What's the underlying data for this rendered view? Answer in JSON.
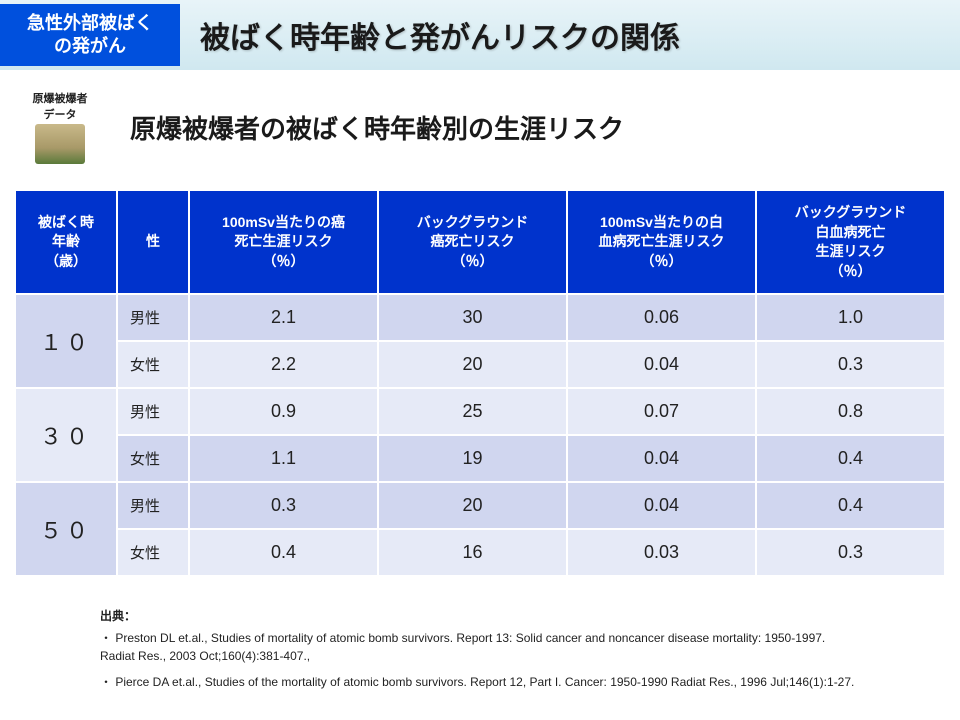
{
  "header": {
    "category_line1": "急性外部被ばく",
    "category_line2": "の発がん",
    "title": "被ばく時年齢と発がんリスクの関係"
  },
  "sub": {
    "source_label": "原爆被爆者\nデータ",
    "title": "原爆被爆者の被ばく時年齢別の生涯リスク"
  },
  "table": {
    "headers": {
      "age": "被ばく時\n年齢\n（歳）",
      "sex": "性",
      "col1": "100mSv当たりの癌\n死亡生涯リスク\n（％）",
      "col2": "バックグラウンド\n癌死亡リスク\n（％）",
      "col3": "100mSv当たりの白\n血病死亡生涯リスク\n（％）",
      "col4": "バックグラウンド\n白血病死亡\n生涯リスク\n（％）"
    },
    "groups": [
      {
        "age": "１０",
        "band": "a",
        "rows": [
          {
            "sex": "男性",
            "v1": "2.1",
            "v2": "30",
            "v3": "0.06",
            "v4": "1.0"
          },
          {
            "sex": "女性",
            "v1": "2.2",
            "v2": "20",
            "v3": "0.04",
            "v4": "0.3"
          }
        ]
      },
      {
        "age": "３０",
        "band": "b",
        "rows": [
          {
            "sex": "男性",
            "v1": "0.9",
            "v2": "25",
            "v3": "0.07",
            "v4": "0.8"
          },
          {
            "sex": "女性",
            "v1": "1.1",
            "v2": "19",
            "v3": "0.04",
            "v4": "0.4"
          }
        ]
      },
      {
        "age": "５０",
        "band": "a",
        "rows": [
          {
            "sex": "男性",
            "v1": "0.3",
            "v2": "20",
            "v3": "0.04",
            "v4": "0.4"
          },
          {
            "sex": "女性",
            "v1": "0.4",
            "v2": "16",
            "v3": "0.03",
            "v4": "0.3"
          }
        ]
      }
    ]
  },
  "citations": {
    "label": "出典：",
    "c1": "・ Preston DL et.al., Studies of mortality of atomic bomb survivors.  Report 13: Solid cancer and noncancer disease mortality: 1950-1997.\n     Radiat Res., 2003 Oct;160(4):381-407.,",
    "c2": "・ Pierce DA et.al., Studies of the mortality of atomic bomb survivors. Report 12, Part I. Cancer: 1950-1990 Radiat Res., 1996 Jul;146(1):1-27."
  },
  "colors": {
    "header_bg": "#0033cc",
    "badge_bg": "#0050dd",
    "band_a": "#d0d6ef",
    "band_b": "#e6eaf7",
    "title_bar_top": "#e8f4f8",
    "title_bar_bottom": "#d0e8f0"
  }
}
